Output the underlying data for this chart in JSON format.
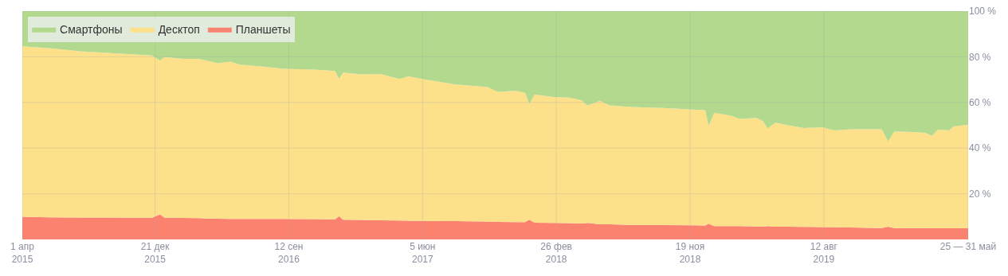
{
  "chart_data": {
    "type": "area",
    "stacked": true,
    "x": [
      "2015-04-01",
      "2015-05-24",
      "2015-07-25",
      "2015-09-25",
      "2015-12-15",
      "2015-12-31",
      "2016-01-09",
      "2016-02-15",
      "2016-03-17",
      "2016-04-24",
      "2016-05-19",
      "2016-06-06",
      "2016-07-20",
      "2016-09-01",
      "2016-11-03",
      "2016-12-13",
      "2016-12-21",
      "2016-12-29",
      "2017-02-04",
      "2017-03-13",
      "2017-04-20",
      "2017-05-08",
      "2017-06-08",
      "2017-08-10",
      "2017-10-11",
      "2017-11-02",
      "2017-12-07",
      "2017-12-26",
      "2018-01-03",
      "2018-01-14",
      "2018-02-20",
      "2018-03-23",
      "2018-04-17",
      "2018-04-29",
      "2018-05-24",
      "2018-06-12",
      "2018-07-25",
      "2018-09-26",
      "2018-11-27",
      "2018-12-19",
      "2018-12-26",
      "2019-01-06",
      "2019-02-10",
      "2019-02-25",
      "2019-03-31",
      "2019-04-13",
      "2019-04-22",
      "2019-05-08",
      "2019-06-02",
      "2019-07-03",
      "2019-08-09",
      "2019-09-03",
      "2019-10-04",
      "2019-12-05",
      "2019-12-18",
      "2019-12-30",
      "2020-02-05",
      "2020-03-01",
      "2020-03-14",
      "2020-03-26",
      "2020-04-17",
      "2020-04-26",
      "2020-05-25"
    ],
    "series": [
      {
        "name": "Планшеты",
        "color": "#fc8270",
        "values": [
          9.9,
          9.7,
          9.6,
          9.6,
          9.5,
          11.0,
          9.5,
          9.4,
          9.3,
          9.1,
          9.0,
          9.0,
          9.0,
          9.0,
          8.9,
          8.8,
          10.2,
          8.6,
          8.5,
          8.4,
          8.3,
          8.2,
          8.1,
          8.0,
          7.8,
          7.7,
          7.6,
          7.6,
          8.6,
          7.3,
          7.2,
          7.1,
          7.0,
          7.2,
          6.6,
          6.6,
          6.4,
          6.3,
          6.2,
          6.1,
          6.9,
          5.8,
          5.8,
          5.8,
          5.7,
          5.7,
          5.8,
          5.6,
          5.6,
          5.5,
          5.4,
          5.3,
          5.2,
          5.0,
          5.6,
          5.0,
          5.0,
          5.0,
          5.0,
          4.9,
          4.9,
          4.9,
          4.9
        ]
      },
      {
        "name": "Десктоп",
        "color": "#fde08a",
        "values": [
          74.7,
          74.1,
          72.8,
          72.0,
          71.1,
          67.3,
          70.4,
          69.7,
          69.8,
          68.1,
          68.9,
          67.6,
          66.8,
          65.7,
          65.5,
          65.0,
          60.1,
          64.5,
          63.8,
          64.1,
          62.0,
          63.2,
          62.0,
          59.9,
          59.0,
          56.9,
          57.5,
          56.6,
          50.7,
          56.2,
          55.2,
          55.0,
          54.0,
          51.5,
          54.1,
          52.1,
          51.6,
          51.3,
          50.7,
          50.5,
          42.8,
          49.7,
          48.3,
          47.0,
          47.5,
          46.1,
          42.8,
          45.5,
          44.4,
          43.3,
          43.7,
          42.4,
          43.1,
          43.3,
          37.3,
          42.3,
          42.0,
          41.7,
          40.4,
          43.2,
          42.8,
          44.6,
          45.4
        ]
      },
      {
        "name": "Смартфоны",
        "color": "#b2d98d",
        "values": [
          15.4,
          16.2,
          17.6,
          18.4,
          19.4,
          21.7,
          20.1,
          20.9,
          20.9,
          22.8,
          22.1,
          23.4,
          24.2,
          25.3,
          25.6,
          26.2,
          29.7,
          26.9,
          27.7,
          27.5,
          29.7,
          28.6,
          29.9,
          32.1,
          33.2,
          35.4,
          34.9,
          35.8,
          40.7,
          36.5,
          37.6,
          37.9,
          39.0,
          41.3,
          39.3,
          41.3,
          42.0,
          42.4,
          43.1,
          43.4,
          50.3,
          44.5,
          45.9,
          47.2,
          46.8,
          48.2,
          51.4,
          48.9,
          50.0,
          51.2,
          50.9,
          52.3,
          51.7,
          51.7,
          57.1,
          52.7,
          53.0,
          53.3,
          54.6,
          51.9,
          52.3,
          50.5,
          49.7
        ]
      }
    ],
    "xlim": [
      "2015-04-01",
      "2020-05-25"
    ],
    "xticks": [
      {
        "value": "2015-04-01",
        "label": "1 апр\n2015"
      },
      {
        "value": "2015-12-21",
        "label": "21 дек\n2015"
      },
      {
        "value": "2016-09-12",
        "label": "12 сен\n2016"
      },
      {
        "value": "2017-06-05",
        "label": "5 июн\n2017"
      },
      {
        "value": "2018-02-26",
        "label": "26 фев\n2018"
      },
      {
        "value": "2018-11-19",
        "label": "19 ноя\n2018"
      },
      {
        "value": "2019-08-12",
        "label": "12 авг\n2019"
      },
      {
        "value": "2020-05-25",
        "label": "25 — 31 май"
      }
    ],
    "ylim": [
      0,
      100
    ],
    "yticks": [
      {
        "value": 20,
        "label": "20 %"
      },
      {
        "value": 40,
        "label": "40 %"
      },
      {
        "value": 60,
        "label": "60 %"
      },
      {
        "value": 80,
        "label": "80 %"
      },
      {
        "value": 100,
        "label": "100 %"
      }
    ],
    "grid": true,
    "legend": "top left"
  }
}
